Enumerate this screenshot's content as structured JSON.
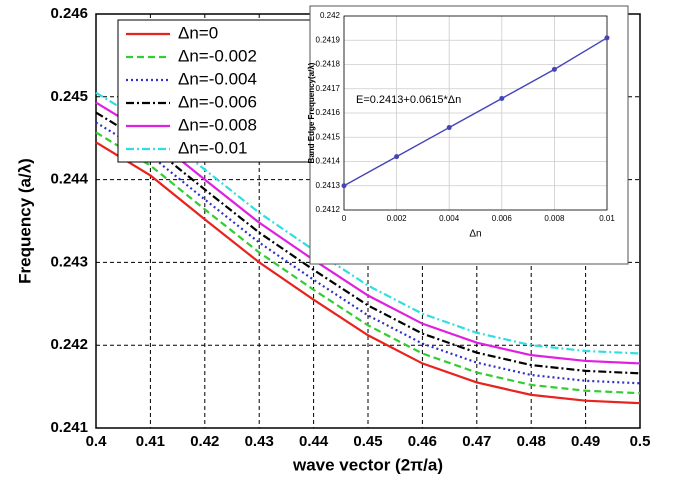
{
  "chart_data": [
    {
      "type": "line",
      "xlabel": "wave vector (2π/a)",
      "ylabel": "Frequency (a/λ)",
      "x": [
        0.4,
        0.41,
        0.42,
        0.43,
        0.44,
        0.45,
        0.46,
        0.47,
        0.48,
        0.49,
        0.5
      ],
      "xlim": [
        0.4,
        0.5
      ],
      "xticks": [
        0.4,
        0.41,
        0.42,
        0.43,
        0.44,
        0.45,
        0.46,
        0.47,
        0.48,
        0.49,
        0.5
      ],
      "ylim": [
        0.241,
        0.246
      ],
      "yticks": [
        0.241,
        0.242,
        0.243,
        0.244,
        0.245,
        0.246
      ],
      "grid": true,
      "legend": "upper left",
      "series": [
        {
          "name": "Δn=0",
          "color": "#e8231e",
          "dash": "solid",
          "values": [
            0.24445,
            0.24405,
            0.24352,
            0.243,
            0.24255,
            0.24212,
            0.24178,
            0.24155,
            0.2414,
            0.24133,
            0.2413
          ]
        },
        {
          "name": "Δn=-0.002",
          "color": "#33cc33",
          "dash": "dashed",
          "values": [
            0.24457,
            0.24417,
            0.24364,
            0.24312,
            0.24267,
            0.24224,
            0.2419,
            0.24167,
            0.24152,
            0.24145,
            0.24142
          ]
        },
        {
          "name": "Δn=-0.004",
          "color": "#3030c8",
          "dash": "dotted",
          "values": [
            0.24469,
            0.24429,
            0.24376,
            0.24324,
            0.24279,
            0.24236,
            0.24202,
            0.24179,
            0.24164,
            0.24157,
            0.24154
          ]
        },
        {
          "name": "Δn=-0.006",
          "color": "#000000",
          "dash": "dashdot",
          "values": [
            0.24481,
            0.24441,
            0.24388,
            0.24336,
            0.24291,
            0.24248,
            0.24214,
            0.24191,
            0.24176,
            0.24169,
            0.24166
          ]
        },
        {
          "name": "Δn=-0.008",
          "color": "#e020e0",
          "dash": "solid",
          "values": [
            0.24493,
            0.24453,
            0.244,
            0.24348,
            0.24303,
            0.2426,
            0.24226,
            0.24203,
            0.24188,
            0.24181,
            0.24178
          ]
        },
        {
          "name": "Δn=-0.01",
          "color": "#30dde0",
          "dash": "dashdot",
          "values": [
            0.24505,
            0.24465,
            0.24412,
            0.2436,
            0.24315,
            0.24272,
            0.24238,
            0.24215,
            0.242,
            0.24193,
            0.2419
          ]
        }
      ]
    },
    {
      "type": "line",
      "xlabel": "Δn",
      "ylabel": "Band Edge Frequency(a/λ)",
      "annotation": "E=0.2413+0.0615*Δn",
      "x": [
        0,
        0.002,
        0.004,
        0.006,
        0.008,
        0.01
      ],
      "xlim": [
        0,
        0.01
      ],
      "xticks": [
        0,
        0.002,
        0.004,
        0.006,
        0.008,
        0.01
      ],
      "ylim": [
        0.2412,
        0.242
      ],
      "yticks": [
        0.2412,
        0.2413,
        0.2414,
        0.2415,
        0.2416,
        0.2417,
        0.2418,
        0.2419,
        0.242
      ],
      "grid": true,
      "color": "#4444bb",
      "markers": true,
      "values": [
        0.2413,
        0.24142,
        0.24154,
        0.24166,
        0.24178,
        0.24191
      ]
    }
  ]
}
